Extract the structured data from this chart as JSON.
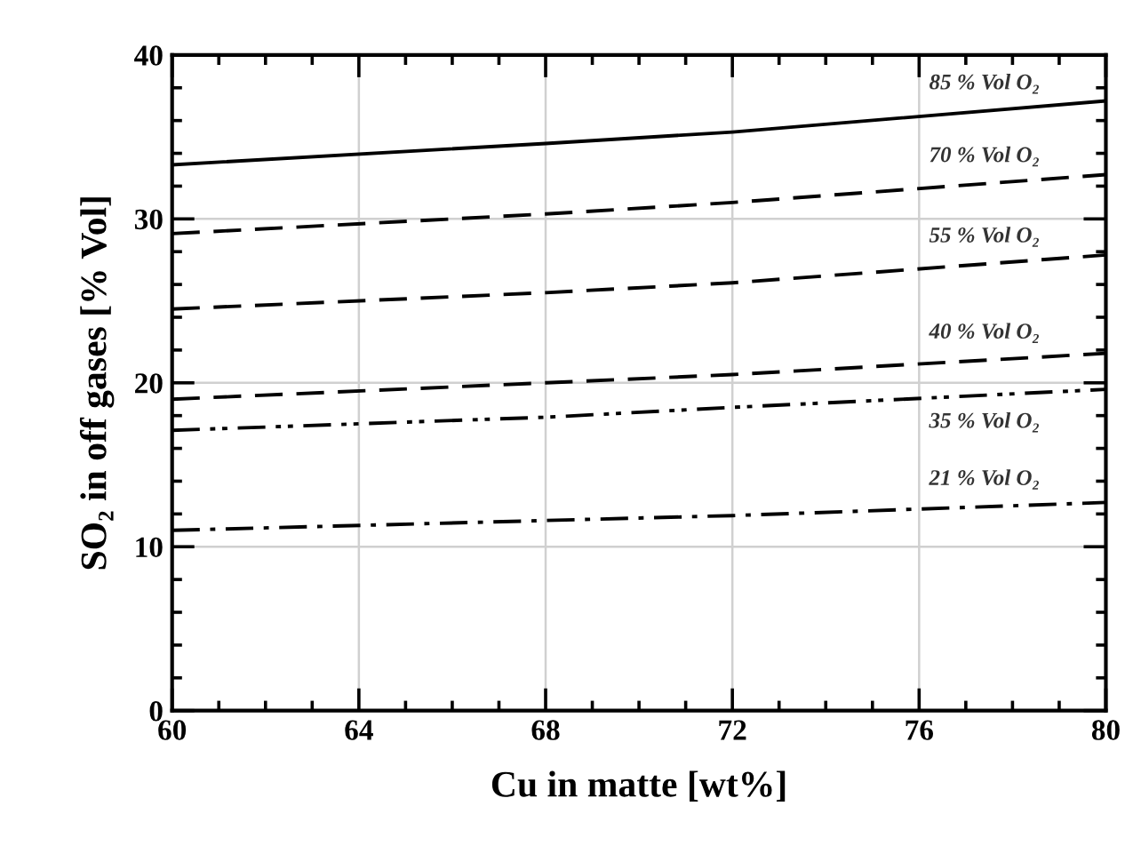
{
  "chart_data": {
    "type": "line",
    "xlabel": "Cu in matte [wt%]",
    "ylabel": "SO₂ in off gases [% Vol]",
    "x": [
      60,
      68,
      72,
      80
    ],
    "series": [
      {
        "name": "85 % Vol O₂",
        "color": "#000000",
        "line_style": "solid",
        "values": [
          33.3,
          34.6,
          35.3,
          37.2
        ]
      },
      {
        "name": "70 % Vol O₂",
        "color": "#000000",
        "line_style": "dashed",
        "values": [
          29.1,
          30.3,
          31.0,
          32.7
        ]
      },
      {
        "name": "55 % Vol O₂",
        "color": "#000000",
        "line_style": "dashed",
        "values": [
          24.5,
          25.5,
          26.1,
          27.8
        ]
      },
      {
        "name": "40 % Vol O₂",
        "color": "#000000",
        "line_style": "dashed",
        "values": [
          19.0,
          20.0,
          20.5,
          21.8
        ]
      },
      {
        "name": "35 % Vol O₂",
        "color": "#000000",
        "line_style": "dashdotdot",
        "values": [
          17.1,
          17.9,
          18.5,
          19.6
        ]
      },
      {
        "name": "21 % Vol O₂",
        "color": "#000000",
        "line_style": "dashdot",
        "values": [
          11.0,
          11.6,
          11.9,
          12.7
        ]
      }
    ],
    "xlim": [
      60,
      80
    ],
    "xticks": [
      60,
      64,
      68,
      72,
      76,
      80
    ],
    "ylim": [
      0,
      40
    ],
    "yticks": [
      0,
      10,
      20,
      30,
      40
    ],
    "grid": true,
    "marker": "none"
  }
}
